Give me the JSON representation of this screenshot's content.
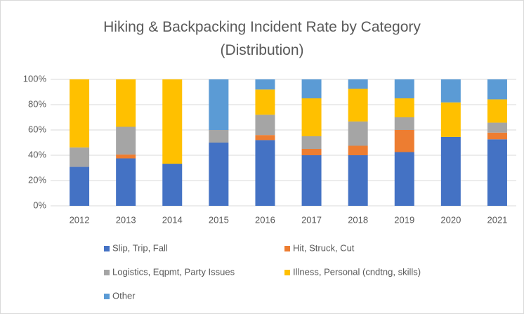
{
  "chart_data": {
    "type": "stacked_bar_100",
    "title": "Hiking & Backpacking Incident Rate by Category (Distribution)",
    "categories": [
      "2012",
      "2013",
      "2014",
      "2015",
      "2016",
      "2017",
      "2018",
      "2019",
      "2020",
      "2021"
    ],
    "series": [
      {
        "name": "Slip, Trip, Fall",
        "color": "#4472c4",
        "values": [
          30.8,
          37.5,
          33.3,
          50,
          52,
          40,
          40,
          42.5,
          54.5,
          52.6
        ]
      },
      {
        "name": "Hit, Struck, Cut",
        "color": "#ed7d31",
        "values": [
          0,
          3.1,
          0,
          0,
          4,
          5,
          7.5,
          17.5,
          0,
          5.3
        ]
      },
      {
        "name": "Logistics, Eqpmt, Party Issues",
        "color": "#a5a5a5",
        "values": [
          15.4,
          21.9,
          0,
          10,
          16,
          10,
          19.2,
          10,
          0,
          7.9
        ]
      },
      {
        "name": "Illness, Personal (cndtng, skills)",
        "color": "#ffc000",
        "values": [
          53.8,
          37.5,
          66.7,
          0,
          20,
          30,
          25.8,
          15,
          27.3,
          18.4
        ]
      },
      {
        "name": "Other",
        "color": "#5b9bd5",
        "values": [
          0,
          0,
          0,
          40,
          8,
          15,
          7.5,
          15,
          18.2,
          15.8
        ]
      }
    ],
    "ylim": [
      0,
      100
    ],
    "yticks": [
      {
        "value": 0,
        "label": "0%"
      },
      {
        "value": 20,
        "label": "20%"
      },
      {
        "value": 40,
        "label": "40%"
      },
      {
        "value": 60,
        "label": "60%"
      },
      {
        "value": 80,
        "label": "80%"
      },
      {
        "value": 100,
        "label": "100%"
      }
    ],
    "grid": true,
    "legend": "bottom"
  }
}
